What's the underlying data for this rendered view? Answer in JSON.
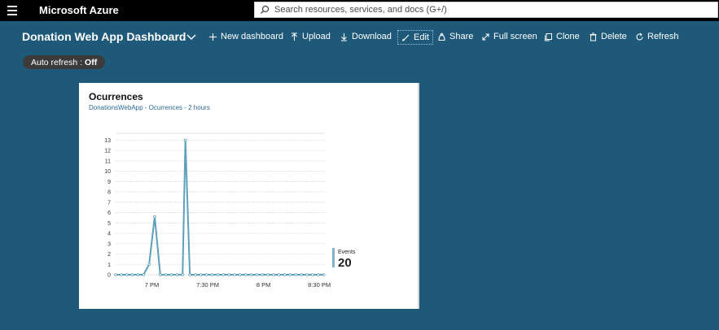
{
  "topbar": {
    "brand": "Microsoft Azure",
    "search_placeholder": "Search resources, services, and docs (G+/)"
  },
  "dashboard": {
    "title": "Donation Web App Dashboard"
  },
  "toolbar": {
    "new_dashboard": "New dashboard",
    "upload": "Upload",
    "download": "Download",
    "edit": "Edit",
    "share": "Share",
    "full_screen": "Full screen",
    "clone": "Clone",
    "delete": "Delete",
    "refresh": "Refresh"
  },
  "auto_refresh": {
    "label": "Auto refresh :",
    "value": "Off"
  },
  "tile": {
    "title": "Ocurrences",
    "subtitle": "DonationsWebApp - Ocurrences - 2 hours",
    "legend": {
      "name": "Events",
      "value": "20"
    }
  },
  "chart_data": {
    "type": "line",
    "y_ticks": [
      0,
      1,
      2,
      3,
      4,
      5,
      6,
      7,
      8,
      9,
      10,
      11,
      12,
      13
    ],
    "ylim": [
      0,
      13.5
    ],
    "x_tick_labels": [
      "7 PM",
      "7:30 PM",
      "8 PM",
      "8:30 PM"
    ],
    "x_tick_positions": [
      1,
      2,
      3,
      4
    ],
    "xlim": [
      0.35,
      4.1
    ],
    "series": [
      {
        "color": "#5fa0ba",
        "points": [
          [
            0.35,
            0
          ],
          [
            0.45,
            0
          ],
          [
            0.55,
            0
          ],
          [
            0.65,
            0
          ],
          [
            0.75,
            0
          ],
          [
            0.85,
            0
          ],
          [
            0.95,
            1
          ],
          [
            1.05,
            5.6
          ],
          [
            1.15,
            0
          ],
          [
            1.25,
            0
          ],
          [
            1.35,
            0
          ],
          [
            1.45,
            0
          ],
          [
            1.55,
            0
          ],
          [
            1.6,
            13
          ],
          [
            1.68,
            0
          ],
          [
            1.78,
            0
          ],
          [
            1.88,
            0
          ],
          [
            1.98,
            0
          ],
          [
            2.08,
            0
          ],
          [
            2.18,
            0
          ],
          [
            2.28,
            0
          ],
          [
            2.38,
            0
          ],
          [
            2.48,
            0
          ],
          [
            2.58,
            0
          ],
          [
            2.68,
            0
          ],
          [
            2.78,
            0
          ],
          [
            2.88,
            0
          ],
          [
            2.98,
            0
          ],
          [
            3.08,
            0
          ],
          [
            3.18,
            0
          ],
          [
            3.28,
            0
          ],
          [
            3.38,
            0
          ],
          [
            3.48,
            0
          ],
          [
            3.58,
            0
          ],
          [
            3.68,
            0
          ],
          [
            3.78,
            0
          ],
          [
            3.88,
            0
          ],
          [
            3.98,
            0
          ],
          [
            4.08,
            0
          ]
        ]
      }
    ]
  }
}
